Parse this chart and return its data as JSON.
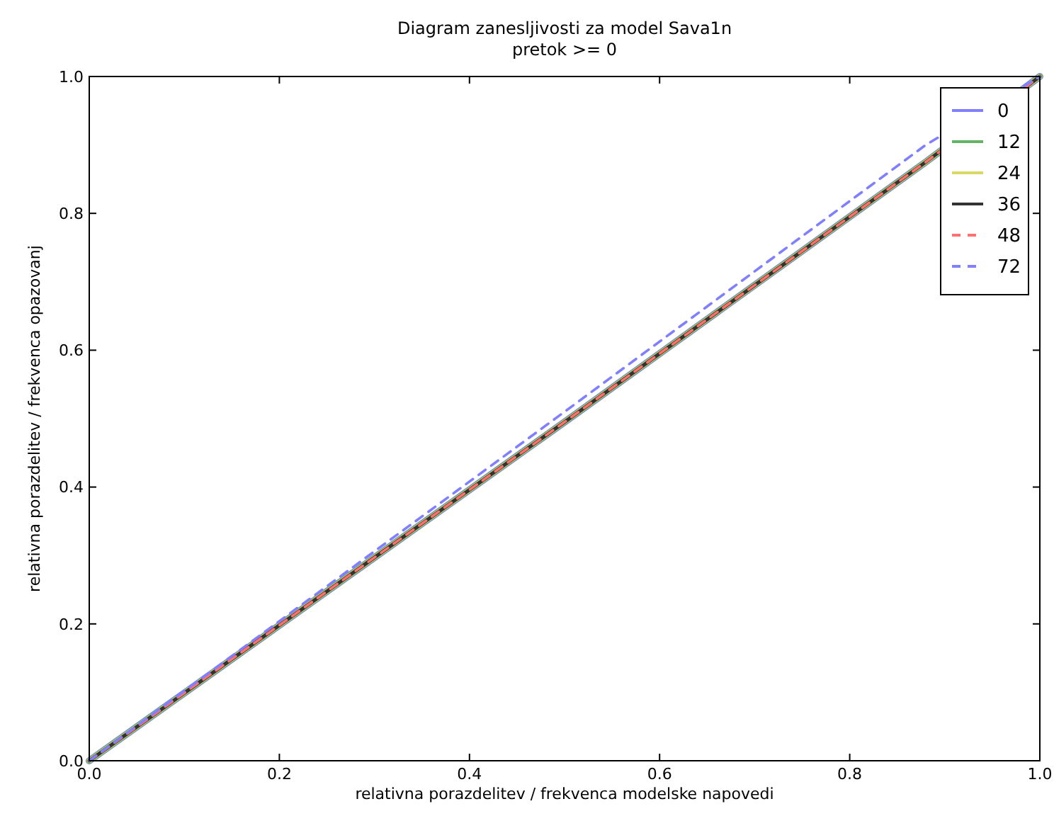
{
  "chart_data": {
    "type": "line",
    "title": "Diagram zanesljivosti za model Sava1n",
    "subtitle": "pretok >= 0",
    "xlabel": "relativna porazdelitev / frekvenca modelske napovedi",
    "ylabel": "relativna porazdelitev / frekvenca opazovanj",
    "x": [
      0,
      0.5,
      0.88,
      1
    ],
    "xlim": [
      0,
      1
    ],
    "ylim": [
      0,
      1
    ],
    "xticks": [
      {
        "value": 0,
        "label": "0.0"
      },
      0.2,
      0.4,
      0.6,
      0.8,
      {
        "value": 1,
        "label": "1.0"
      }
    ],
    "yticks": [
      {
        "value": 0,
        "label": "0.0"
      },
      0.2,
      0.4,
      0.6,
      0.8,
      {
        "value": 1,
        "label": "1.0"
      }
    ],
    "grid": false,
    "legend": "top right",
    "marker": "none",
    "series": [
      {
        "name": "0",
        "color": "#8080ff",
        "values": [
          0,
          0.495,
          0.875,
          1
        ],
        "line_style": "solid"
      },
      {
        "name": "12",
        "color": "#66b366",
        "values": [
          0,
          0.495,
          0.875,
          1
        ],
        "line_style": "solid"
      },
      {
        "name": "24",
        "color": "#d9d966",
        "values": [
          0,
          0.495,
          0.875,
          1
        ],
        "line_style": "solid"
      },
      {
        "name": "36",
        "color": "#333333",
        "values": [
          0,
          0.495,
          0.875,
          1
        ],
        "line_style": "solid"
      },
      {
        "name": "48",
        "color": "#ff7070",
        "values": [
          0,
          0.495,
          0.875,
          1
        ],
        "line_style": "dashed"
      },
      {
        "name": "72",
        "color": "#8080ff",
        "values": [
          0,
          0.51,
          0.9,
          1
        ],
        "line_style": "dashed"
      }
    ]
  }
}
